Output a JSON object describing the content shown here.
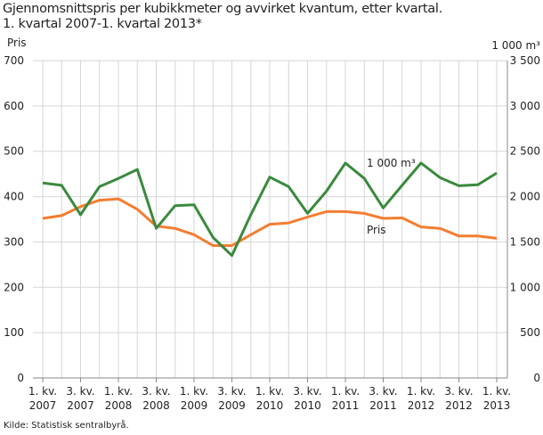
{
  "chart_data": {
    "type": "line",
    "title_line1": "Gjennomsnittspris per kubikkmeter og avvirket kvantum, etter kvartal.",
    "title_line2": "1. kvartal 2007-1. kvartal 2013*",
    "left_axis_label": "Pris",
    "right_axis_label": "1 000 m³",
    "left_ylim": [
      0,
      700
    ],
    "right_ylim": [
      0,
      3500
    ],
    "left_ticks": [
      "0",
      "100",
      "200",
      "300",
      "400",
      "500",
      "600",
      "700"
    ],
    "right_ticks": [
      "0",
      "500",
      "1 000",
      "1 500",
      "2 000",
      "2 500",
      "3 000",
      "3 500"
    ],
    "x_tick_labels": [
      [
        "1. kv.",
        "2007"
      ],
      [
        "3. kv.",
        "2007"
      ],
      [
        "1. kv.",
        "2008"
      ],
      [
        "3. kv.",
        "2008"
      ],
      [
        "1. kv.",
        "2009"
      ],
      [
        "3. kv.",
        "2009"
      ],
      [
        "1. kv.",
        "2010"
      ],
      [
        "3. kv.",
        "2010"
      ],
      [
        "1. kv.",
        "2011"
      ],
      [
        "3. kv.",
        "2011"
      ],
      [
        "1. kv.",
        "2012"
      ],
      [
        "3. kv.",
        "2012"
      ],
      [
        "1. kv.",
        "2013"
      ]
    ],
    "grid": true,
    "series": [
      {
        "name": "Pris",
        "axis": "left",
        "color": "#f47d30",
        "values": [
          352,
          358,
          378,
          392,
          395,
          372,
          335,
          330,
          316,
          292,
          292,
          316,
          339,
          342,
          355,
          367,
          367,
          363,
          352,
          353,
          333,
          330,
          313,
          313,
          308
        ]
      },
      {
        "name": "1 000 m³",
        "axis": "right",
        "color": "#3a8a3e",
        "values": [
          2150,
          2125,
          1800,
          2110,
          2200,
          2300,
          1650,
          1900,
          1910,
          1550,
          1350,
          1800,
          2215,
          2110,
          1815,
          2060,
          2370,
          2200,
          1875,
          2125,
          2370,
          2210,
          2120,
          2130,
          2260
        ]
      }
    ]
  },
  "source": "Kilde: Statistisk sentralbyrå."
}
